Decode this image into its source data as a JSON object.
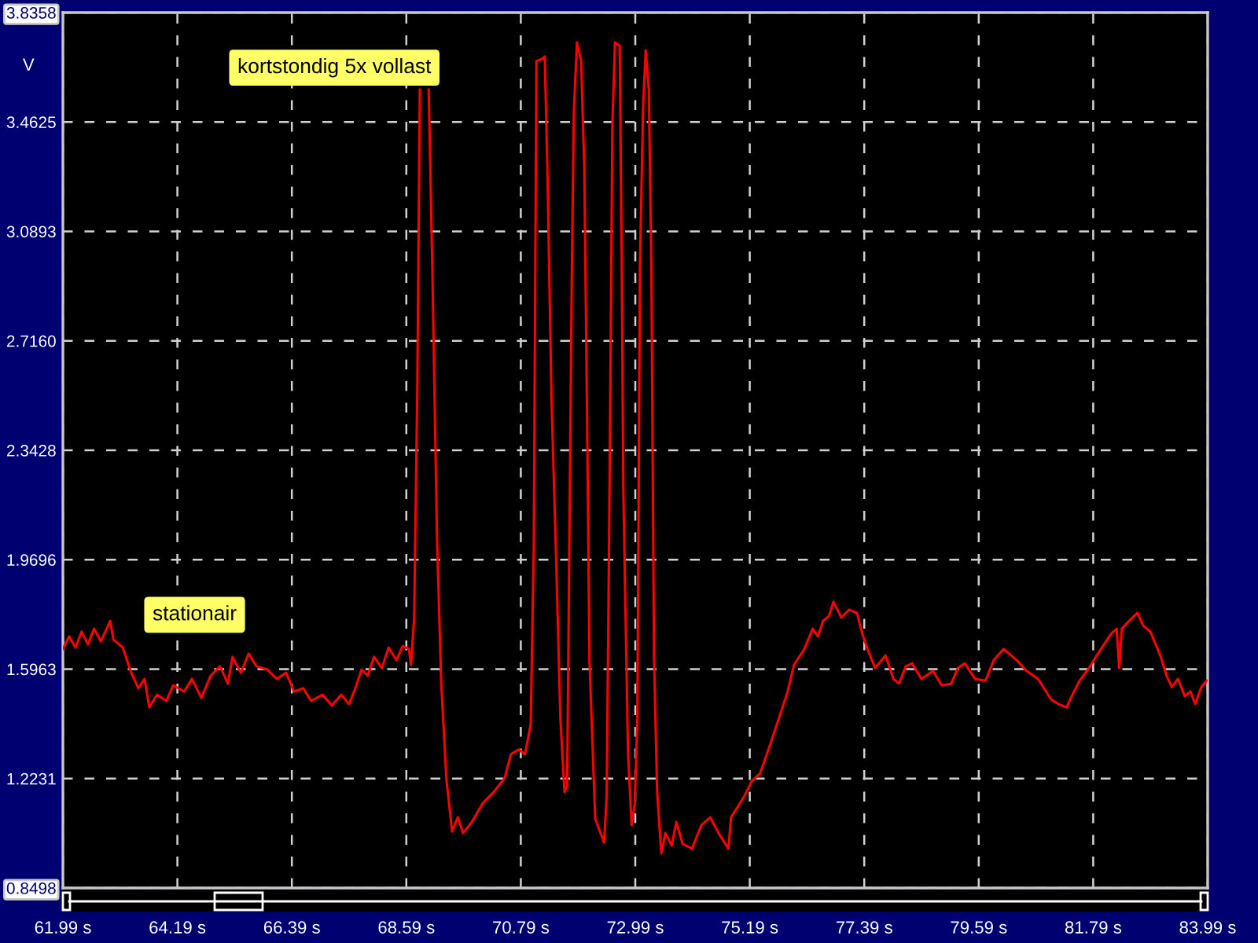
{
  "chart_data": {
    "type": "line",
    "ylabel": "V",
    "color": "#ff0000",
    "x": [
      61.99,
      62.11,
      62.23,
      62.35,
      62.47,
      62.59,
      62.72,
      62.9,
      62.96,
      63.14,
      63.29,
      63.44,
      63.56,
      63.65,
      63.8,
      63.98,
      64.11,
      64.32,
      64.47,
      64.65,
      64.83,
      65.01,
      65.16,
      65.25,
      65.41,
      65.56,
      65.71,
      65.92,
      66.1,
      66.28,
      66.43,
      66.61,
      66.76,
      66.98,
      67.16,
      67.34,
      67.49,
      67.61,
      67.73,
      67.85,
      67.97,
      68.12,
      68.25,
      68.4,
      68.52,
      68.64,
      68.68,
      68.74,
      68.8,
      68.85,
      68.94,
      69.02,
      69.09,
      69.18,
      69.26,
      69.36,
      69.47,
      69.58,
      69.68,
      69.85,
      70.06,
      70.27,
      70.48,
      70.6,
      70.75,
      70.87,
      70.98,
      71.04,
      71.09,
      71.2,
      71.25,
      71.3,
      71.38,
      71.47,
      71.55,
      71.63,
      71.68,
      71.77,
      71.81,
      71.87,
      71.95,
      72.01,
      72.06,
      72.11,
      72.22,
      72.31,
      72.39,
      72.44,
      72.49,
      72.55,
      72.6,
      72.69,
      72.73,
      72.76,
      72.85,
      72.92,
      72.98,
      73.03,
      73.08,
      73.14,
      73.19,
      73.25,
      73.3,
      73.35,
      73.41,
      73.49,
      73.57,
      73.69,
      73.78,
      73.9,
      74.08,
      74.26,
      74.43,
      74.59,
      74.78,
      74.83,
      75.08,
      75.23,
      75.39,
      75.59,
      75.79,
      75.92,
      76.04,
      76.24,
      76.4,
      76.5,
      76.6,
      76.71,
      76.8,
      76.95,
      77.1,
      77.25,
      77.35,
      77.45,
      77.6,
      77.8,
      77.95,
      78.06,
      78.19,
      78.31,
      78.49,
      78.71,
      78.88,
      79.06,
      79.19,
      79.32,
      79.52,
      79.72,
      79.88,
      80.07,
      80.32,
      80.51,
      80.73,
      80.98,
      81.12,
      81.28,
      81.39,
      81.53,
      81.69,
      81.84,
      82.0,
      82.14,
      82.24,
      82.29,
      82.34,
      82.48,
      82.64,
      82.75,
      82.89,
      82.99,
      83.09,
      83.2,
      83.3,
      83.42,
      83.55,
      83.66,
      83.75,
      83.87,
      83.97
    ],
    "values": [
      1.665,
      1.708,
      1.67,
      1.724,
      1.681,
      1.734,
      1.691,
      1.761,
      1.697,
      1.67,
      1.59,
      1.531,
      1.563,
      1.466,
      1.509,
      1.488,
      1.541,
      1.52,
      1.563,
      1.498,
      1.574,
      1.606,
      1.547,
      1.638,
      1.584,
      1.649,
      1.606,
      1.595,
      1.563,
      1.584,
      1.52,
      1.531,
      1.488,
      1.509,
      1.472,
      1.509,
      1.477,
      1.531,
      1.595,
      1.574,
      1.638,
      1.6,
      1.67,
      1.627,
      1.675,
      1.665,
      1.611,
      1.772,
      2.538,
      3.573,
      null,
      3.573,
      2.962,
      2.04,
      1.552,
      1.22,
      1.043,
      1.091,
      1.037,
      1.075,
      1.139,
      1.177,
      1.225,
      1.306,
      1.322,
      1.306,
      1.407,
      2.024,
      3.67,
      3.678,
      3.686,
      3.305,
      2.517,
      1.965,
      1.429,
      1.177,
      1.198,
      2.941,
      3.503,
      3.734,
      3.67,
      3.305,
      2.517,
      1.622,
      1.086,
      1.043,
      1.005,
      1.161,
      2.099,
      3.455,
      3.734,
      3.723,
      2.978,
      2.211,
      1.311,
      1.064,
      1.139,
      1.429,
      2.978,
      3.514,
      3.707,
      3.573,
      2.962,
      1.638,
      1.177,
      0.968,
      1.037,
      0.995,
      1.075,
      1.0,
      0.984,
      1.064,
      1.091,
      1.037,
      0.984,
      1.091,
      1.161,
      1.214,
      1.241,
      1.343,
      1.45,
      1.52,
      1.611,
      1.665,
      1.734,
      1.708,
      1.761,
      1.777,
      1.826,
      1.772,
      1.799,
      1.788,
      1.718,
      1.665,
      1.6,
      1.643,
      1.563,
      1.547,
      1.606,
      1.616,
      1.563,
      1.59,
      1.541,
      1.547,
      1.6,
      1.616,
      1.563,
      1.557,
      1.627,
      1.665,
      1.627,
      1.59,
      1.563,
      1.493,
      1.477,
      1.466,
      1.509,
      1.557,
      1.595,
      1.638,
      1.681,
      1.718,
      1.734,
      1.6,
      1.734,
      1.761,
      1.788,
      1.745,
      1.724,
      1.681,
      1.638,
      1.574,
      1.536,
      1.563,
      1.504,
      1.52,
      1.477,
      1.536,
      1.557
    ],
    "xlim": [
      61.99,
      83.99
    ],
    "xticks": [
      {
        "value": 61.99,
        "label": "61.99 s"
      },
      {
        "value": 64.19,
        "label": "64.19 s"
      },
      {
        "value": 66.39,
        "label": "66.39 s"
      },
      {
        "value": 68.59,
        "label": "68.59 s"
      },
      {
        "value": 70.79,
        "label": "70.79 s"
      },
      {
        "value": 72.99,
        "label": "72.99 s"
      },
      {
        "value": 75.19,
        "label": "75.19 s"
      },
      {
        "value": 77.39,
        "label": "77.39 s"
      },
      {
        "value": 79.59,
        "label": "79.59 s"
      },
      {
        "value": 81.79,
        "label": "81.79 s"
      },
      {
        "value": 83.99,
        "label": "83.99 s"
      }
    ],
    "ylim": [
      0.8498,
      3.8358
    ],
    "yticks": [
      0.8498,
      1.2231,
      1.5963,
      1.9696,
      2.3428,
      {
        "value": 2.716,
        "label": "2.7160"
      },
      3.0893,
      3.4625,
      3.8358
    ],
    "grid": true,
    "annotations": [
      "kortstondig 5x vollast",
      "stationair"
    ]
  }
}
